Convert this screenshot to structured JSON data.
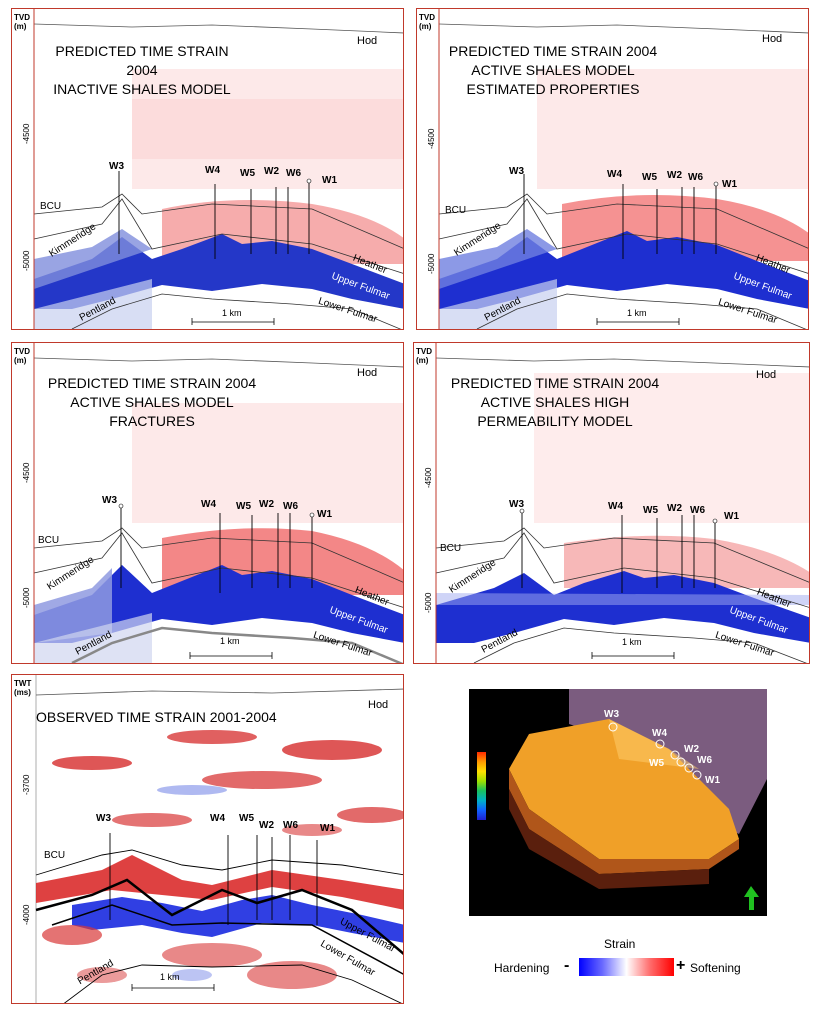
{
  "panels": {
    "p1": {
      "title": "PREDICTED TIME STRAIN\n2004\nINACTIVE SHALES MODEL",
      "axis": "TVD\n(m)",
      "ticks": [
        "-4500",
        "-5000"
      ],
      "hod": "Hod",
      "wells": [
        "W3",
        "W4",
        "W5",
        "W2",
        "W6",
        "W1"
      ],
      "horizons": [
        "BCU",
        "Kimmeridge",
        "Heather",
        "Upper Fulmar",
        "Lower Fulmar",
        "Pentland"
      ],
      "scale": "1 km"
    },
    "p2": {
      "title": "PREDICTED TIME STRAIN 2004\nACTIVE SHALES MODEL\nESTIMATED PROPERTIES",
      "axis": "TVD\n(m)",
      "ticks": [
        "-4500",
        "-5000"
      ],
      "hod": "Hod",
      "wells": [
        "W3",
        "W4",
        "W5",
        "W2",
        "W6",
        "W1"
      ],
      "horizons": [
        "BCU",
        "Kimmeridge",
        "Heather",
        "Upper Fulmar",
        "Lower Fulmar",
        "Pentland"
      ],
      "scale": "1 km"
    },
    "p3": {
      "title": "PREDICTED TIME STRAIN 2004\nACTIVE SHALES MODEL\nFRACTURES",
      "axis": "TVD\n(m)",
      "ticks": [
        "-4500",
        "-5000"
      ],
      "hod": "Hod",
      "wells": [
        "W3",
        "W4",
        "W5",
        "W2",
        "W6",
        "W1"
      ],
      "horizons": [
        "BCU",
        "Kimmeridge",
        "Heather",
        "Upper Fulmar",
        "Lower Fulmar",
        "Pentland"
      ],
      "scale": "1 km"
    },
    "p4": {
      "title": "PREDICTED TIME  STRAIN 2004\nACTIVE SHALES HIGH\nPERMEABILITY  MODEL",
      "axis": "TVD\n(m)",
      "ticks": [
        "-4500",
        "-5000"
      ],
      "hod": "Hod",
      "wells": [
        "W3",
        "W4",
        "W5",
        "W2",
        "W6",
        "W1"
      ],
      "horizons": [
        "BCU",
        "Kimmeridge",
        "Heather",
        "Upper Fulmar",
        "Lower Fulmar",
        "Pentland"
      ],
      "scale": "1 km"
    },
    "p5": {
      "title": "OBSERVED TIME STRAIN 2001-2004",
      "axis": "TWT\n(ms)",
      "ticks": [
        "-3700",
        "-4000"
      ],
      "hod": "Hod",
      "wells": [
        "W3",
        "W4",
        "W5",
        "W2",
        "W6",
        "W1"
      ],
      "horizons": [
        "BCU",
        "Upper Fulmar",
        "Lower Fulmar",
        "Pentland"
      ],
      "scale": "1 km"
    },
    "p6": {
      "wells": [
        "W3",
        "W4",
        "W5",
        "W2",
        "W6",
        "W1"
      ]
    }
  },
  "legend": {
    "title": "Strain",
    "left_label": "Hardening",
    "left_symbol": "-",
    "right_symbol": "+",
    "right_label": "Softening"
  }
}
